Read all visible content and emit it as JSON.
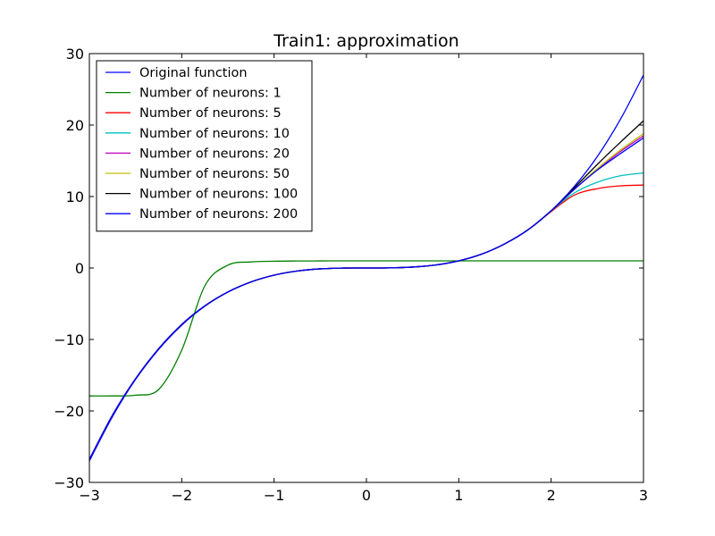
{
  "chart_data": {
    "type": "line",
    "title": "Train1: approximation",
    "xlabel": "",
    "ylabel": "",
    "xlim": [
      -3,
      3
    ],
    "ylim": [
      -30,
      30
    ],
    "xticks": [
      -3,
      -2,
      -1,
      0,
      1,
      2,
      3
    ],
    "yticks": [
      -30,
      -20,
      -10,
      0,
      10,
      20,
      30
    ],
    "xtick_labels": [
      "−3",
      "−2",
      "−1",
      "0",
      "1",
      "2",
      "3"
    ],
    "ytick_labels": [
      "−30",
      "−20",
      "−10",
      "0",
      "10",
      "20",
      "30"
    ],
    "grid": false,
    "legend_position": "top-left",
    "x": [
      -3,
      -2.75,
      -2.5,
      -2.25,
      -2,
      -1.75,
      -1.5,
      -1.25,
      -1,
      -0.75,
      -0.5,
      -0.25,
      0,
      0.25,
      0.5,
      0.75,
      1,
      1.25,
      1.5,
      1.75,
      2,
      2.25,
      2.5,
      2.75,
      3
    ],
    "series": [
      {
        "name": "Original function",
        "color": "#0000ff",
        "values": [
          -27,
          -20.8,
          -15.6,
          -11.4,
          -8,
          -5.36,
          -3.38,
          -1.95,
          -1,
          -0.42,
          -0.125,
          -0.016,
          0,
          0.016,
          0.125,
          0.42,
          1,
          1.95,
          3.38,
          5.36,
          8,
          11.4,
          15.6,
          20.8,
          27
        ]
      },
      {
        "name": "Number of neurons: 1",
        "color": "#008000",
        "values": [
          -17.9,
          -17.9,
          -17.8,
          -17,
          -11.5,
          -2.5,
          0.4,
          0.85,
          0.95,
          0.98,
          0.99,
          1,
          1,
          1,
          1,
          1,
          1,
          1,
          1,
          1,
          1,
          1,
          1,
          1,
          1
        ]
      },
      {
        "name": "Number of neurons: 5",
        "color": "#ff0000",
        "values": [
          -26.8,
          -20.6,
          -15.5,
          -11.3,
          -7.9,
          -5.3,
          -3.35,
          -1.95,
          -1,
          -0.42,
          -0.12,
          -0.01,
          0,
          0.02,
          0.13,
          0.42,
          1,
          1.95,
          3.4,
          5.35,
          7.9,
          10.2,
          11.1,
          11.5,
          11.6
        ]
      },
      {
        "name": "Number of neurons: 10",
        "color": "#00bfbf",
        "values": [
          -26.8,
          -20.6,
          -15.5,
          -11.3,
          -7.9,
          -5.3,
          -3.35,
          -1.95,
          -1,
          -0.42,
          -0.12,
          -0.01,
          0,
          0.02,
          0.13,
          0.42,
          1,
          1.95,
          3.4,
          5.35,
          8,
          10.5,
          12,
          12.9,
          13.3
        ]
      },
      {
        "name": "Number of neurons: 20",
        "color": "#bf00bf",
        "values": [
          -26.8,
          -20.6,
          -15.5,
          -11.3,
          -7.9,
          -5.3,
          -3.35,
          -1.95,
          -1,
          -0.42,
          -0.12,
          -0.01,
          0,
          0.02,
          0.13,
          0.42,
          1,
          1.95,
          3.4,
          5.35,
          8,
          11,
          13.8,
          16.3,
          18.5
        ]
      },
      {
        "name": "Number of neurons: 50",
        "color": "#bfbf00",
        "values": [
          -26.8,
          -20.6,
          -15.5,
          -11.3,
          -7.9,
          -5.3,
          -3.35,
          -1.95,
          -1,
          -0.42,
          -0.12,
          -0.01,
          0,
          0.02,
          0.13,
          0.42,
          1,
          1.95,
          3.4,
          5.35,
          8,
          11,
          13.9,
          16.5,
          18.8
        ]
      },
      {
        "name": "Number of neurons: 100",
        "color": "#000000",
        "values": [
          -26.8,
          -20.6,
          -15.5,
          -11.3,
          -7.9,
          -5.3,
          -3.35,
          -1.95,
          -1,
          -0.42,
          -0.12,
          -0.01,
          0,
          0.02,
          0.13,
          0.42,
          1,
          1.95,
          3.4,
          5.35,
          8,
          11.2,
          14.5,
          17.6,
          20.6
        ]
      },
      {
        "name": "Number of neurons: 200",
        "color": "#0000ff",
        "values": [
          -26.8,
          -20.6,
          -15.5,
          -11.3,
          -7.9,
          -5.3,
          -3.35,
          -1.95,
          -1,
          -0.42,
          -0.12,
          -0.01,
          0,
          0.02,
          0.13,
          0.42,
          1,
          1.95,
          3.4,
          5.35,
          8,
          11,
          13.7,
          16,
          18.2
        ]
      }
    ]
  }
}
